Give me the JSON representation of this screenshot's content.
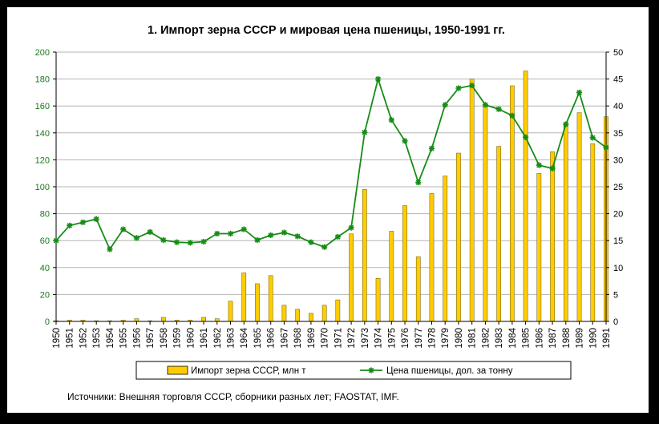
{
  "chart_data": {
    "type": "bar+line",
    "title": "1. Импорт зерна СССР и мировая цена пшеницы, 1950-1991 гг.",
    "source": "Источники: Внешняя торговля СССР, сборники разных лет; FAOSTAT, IMF.",
    "categories": [
      "1950",
      "1951",
      "1952",
      "1953",
      "1954",
      "1955",
      "1956",
      "1957",
      "1958",
      "1959",
      "1960",
      "1961",
      "1962",
      "1963",
      "1964",
      "1965",
      "1966",
      "1967",
      "1968",
      "1969",
      "1970",
      "1971",
      "1972",
      "1973",
      "1974",
      "1975",
      "1976",
      "1977",
      "1978",
      "1979",
      "1980",
      "1981",
      "1982",
      "1983",
      "1984",
      "1985",
      "1986",
      "1987",
      "1988",
      "1989",
      "1990",
      "1991"
    ],
    "series": [
      {
        "name": "Импорт зерна СССР, млн т",
        "type": "bar",
        "axis": "left",
        "color": "#ffcc00",
        "values": [
          0.5,
          1,
          1,
          0.5,
          0.5,
          1,
          2,
          0.5,
          3,
          1,
          1,
          3,
          2,
          15,
          36,
          28,
          34,
          12,
          9,
          6,
          12,
          16,
          65,
          98,
          32,
          67,
          86,
          48,
          95,
          108,
          125,
          180,
          160,
          130,
          175,
          186,
          110,
          126,
          146,
          155,
          132,
          152
        ]
      },
      {
        "name": "Цена пшеницы, дол. за тонну",
        "type": "line",
        "axis": "right",
        "color": "#168c16",
        "values": [
          15,
          17.8,
          18.4,
          19,
          13.4,
          17.1,
          15.5,
          16.6,
          15.1,
          14.7,
          14.6,
          14.8,
          16.3,
          16.3,
          17.1,
          15.1,
          16,
          16.5,
          15.8,
          14.7,
          13.8,
          15.7,
          17.4,
          35.1,
          45,
          37.4,
          33.5,
          25.8,
          32.1,
          40.2,
          43.3,
          43.8,
          40.2,
          39.4,
          38.2,
          34.2,
          29,
          28.4,
          36.6,
          42.5,
          34.1,
          32.3
        ]
      }
    ],
    "y_left": {
      "min": 0,
      "max": 200,
      "ticks": [
        0,
        20,
        40,
        60,
        80,
        100,
        120,
        140,
        160,
        180,
        200
      ]
    },
    "y_right": {
      "min": 0,
      "max": 50,
      "ticks": [
        0,
        5,
        10,
        15,
        20,
        25,
        30,
        35,
        40,
        45,
        50
      ]
    },
    "grid": true,
    "legend": "bottom"
  }
}
